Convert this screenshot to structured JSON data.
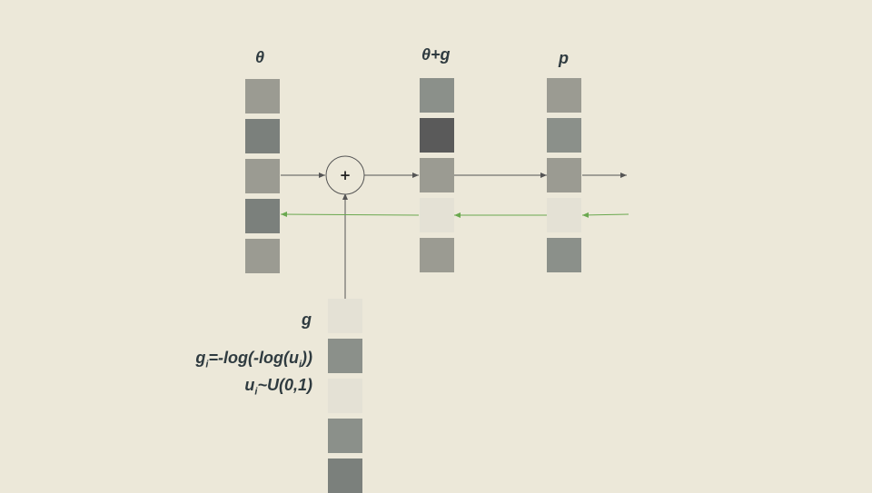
{
  "labels": {
    "theta": "θ",
    "theta_plus_g": "θ+g",
    "p": "p",
    "g": "g"
  },
  "formula": {
    "line1_pre": "g",
    "line1_sub_i": "i",
    "line1_mid": "=-log(-log(u",
    "line1_sub_i2": "i",
    "line1_post": "))",
    "line2_pre": "u",
    "line2_sub": "i",
    "line2_post": "~U(0,1)"
  },
  "operator": {
    "symbol": "+"
  },
  "columns": {
    "theta": [
      "#9b9b92",
      "#7b807c",
      "#9b9b92",
      "#7b807c",
      "#9b9b92"
    ],
    "theta_plus_g": [
      "#8b908a",
      "#5a5a5a",
      "#9b9b92",
      "#e4e1d5",
      "#9b9b92"
    ],
    "p": [
      "#9b9b92",
      "#8b908a",
      "#9b9b92",
      "#e4e1d5",
      "#8b908a"
    ],
    "g": [
      "#e4e1d5",
      "#8b908a",
      "#e4e1d5",
      "#8b908a",
      "#7b807c"
    ]
  },
  "colors": {
    "background": "#ece8d9",
    "forward_arrow": "#555555",
    "backward_arrow": "#6aa84f",
    "text": "#2f3b40"
  }
}
